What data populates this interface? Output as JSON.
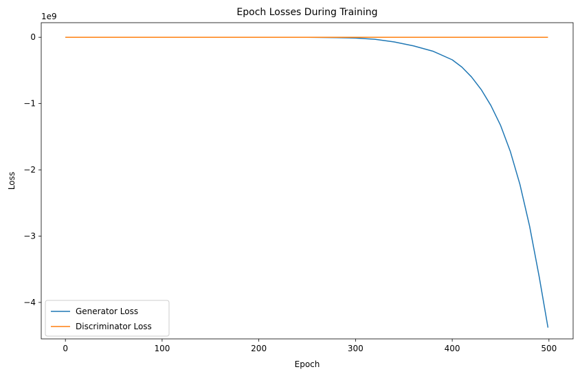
{
  "chart_data": {
    "type": "line",
    "title": "Epoch Losses During Training",
    "xlabel": "Epoch",
    "ylabel": "Loss",
    "y_scale_label": "1e9",
    "xlim": [
      -25,
      525
    ],
    "ylim": [
      -4.55,
      0.22
    ],
    "x_ticks": [
      0,
      100,
      200,
      300,
      400,
      500
    ],
    "x_tick_labels": [
      "0",
      "100",
      "200",
      "300",
      "400",
      "500"
    ],
    "y_ticks": [
      0,
      -1,
      -2,
      -3,
      -4
    ],
    "y_tick_labels": [
      "0",
      "−1",
      "−2",
      "−3",
      "−4"
    ],
    "grid": false,
    "legend_position": "lower-left",
    "series": [
      {
        "name": "Generator Loss",
        "color": "#1f77b4",
        "x": [
          0,
          100,
          200,
          250,
          280,
          300,
          320,
          340,
          360,
          380,
          400,
          410,
          420,
          430,
          440,
          450,
          460,
          470,
          480,
          490,
          499
        ],
        "y": [
          0,
          0,
          0,
          -0.001,
          -0.005,
          -0.012,
          -0.03,
          -0.07,
          -0.13,
          -0.21,
          -0.34,
          -0.45,
          -0.6,
          -0.79,
          -1.03,
          -1.33,
          -1.72,
          -2.22,
          -2.85,
          -3.62,
          -4.38
        ]
      },
      {
        "name": "Discriminator Loss",
        "color": "#ff7f0e",
        "x": [
          0,
          499
        ],
        "y": [
          0,
          0
        ]
      }
    ]
  }
}
